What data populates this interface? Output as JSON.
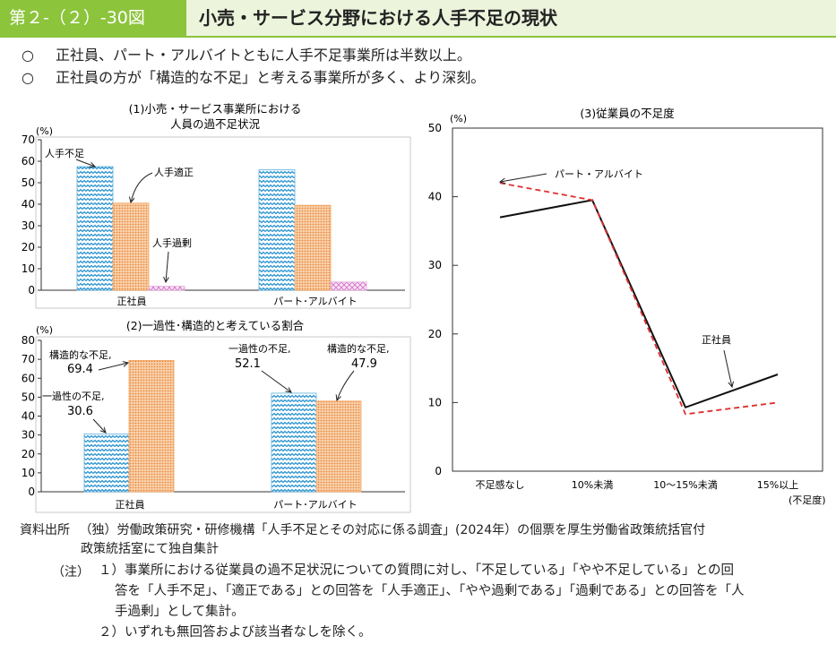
{
  "header": {
    "figure_number": "第２-（２）-30図",
    "title": "小売・サービス分野における人手不足の現状"
  },
  "summary": [
    {
      "mark": "○",
      "text": "正社員、パート・アルバイトともに人手不足事業所は半数以上。"
    },
    {
      "mark": "○",
      "text": "正社員の方が「構造的な不足」と考える事業所が多く、より深刻。"
    }
  ],
  "chart_data": [
    {
      "id": "chart1",
      "type": "bar",
      "title_line1": "(1)小売・サービス事業所における",
      "title_line2": "人員の過不足状況",
      "unit": "(%)",
      "ylim": [
        0,
        70
      ],
      "yticks": [
        "0",
        "10",
        "20",
        "30",
        "40",
        "50",
        "60",
        "70"
      ],
      "categories": [
        "正社員",
        "パート･アルバイト"
      ],
      "series": [
        {
          "name": "人手不足",
          "values": [
            57.5,
            56.0
          ],
          "color": "#5fb0dc"
        },
        {
          "name": "人手適正",
          "values": [
            40.5,
            39.5
          ],
          "color": "#f4a25a"
        },
        {
          "name": "人手過剰",
          "values": [
            1.8,
            3.8
          ],
          "color": "#e2a0d8"
        }
      ]
    },
    {
      "id": "chart2",
      "type": "bar",
      "title": "(2)一過性･構造的と考えている割合",
      "unit": "(%)",
      "ylim": [
        0,
        80
      ],
      "yticks": [
        "0",
        "10",
        "20",
        "30",
        "40",
        "50",
        "60",
        "70",
        "80"
      ],
      "categories": [
        "正社員",
        "パート･アルバイト"
      ],
      "series": [
        {
          "name": "一過性の不足,",
          "values": [
            30.6,
            52.1
          ],
          "labels": [
            "30.6",
            "52.1"
          ],
          "color": "#5fb0dc"
        },
        {
          "name": "構造的な不足,",
          "values": [
            69.4,
            47.9
          ],
          "labels": [
            "69.4",
            "47.9"
          ],
          "color": "#f4a25a"
        }
      ]
    },
    {
      "id": "chart3",
      "type": "line",
      "title": "(3)従業員の不足度",
      "unit": "(%)",
      "ylim": [
        0,
        50
      ],
      "yticks": [
        "0",
        "10",
        "20",
        "30",
        "40",
        "50"
      ],
      "categories": [
        "不足感なし",
        "10%未満",
        "10～15%未満",
        "15%以上"
      ],
      "x_note": "(不足度)",
      "series": [
        {
          "name": "正社員",
          "values": [
            37.0,
            39.5,
            9.3,
            14.1
          ],
          "color": "#111111",
          "dash": false
        },
        {
          "name": "パート・アルバイト",
          "values": [
            42.0,
            39.5,
            8.3,
            10.0
          ],
          "color": "#e03030",
          "dash": true
        }
      ]
    }
  ],
  "footer": {
    "source_label": "資料出所",
    "source_text": "（独）労働政策研究・研修機構「人手不足とその対応に係る調査」(2024年）の個票を厚生労働省政策統括官付",
    "source_text2": "政策統括室にて独自集計",
    "note_label": "（注）",
    "notes": [
      "１）事業所における従業員の過不足状況についての質問に対し、「不足している」「やや不足している」との回",
      "答を「人手不足」、「適正である」との回答を「人手適正」、「やや過剰である」「過剰である」との回答を「人",
      "手過剰」として集計。",
      "２）いずれも無回答および該当者なしを除く。"
    ]
  }
}
